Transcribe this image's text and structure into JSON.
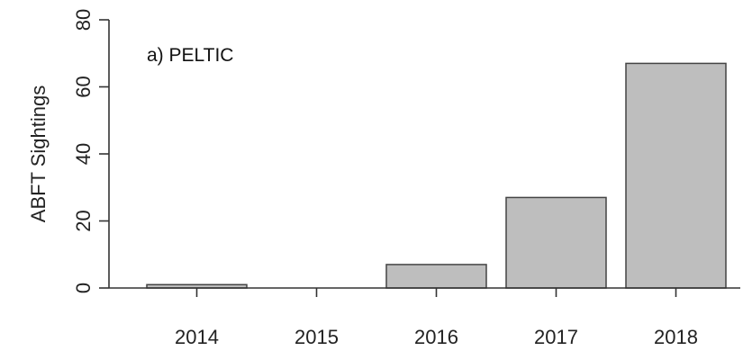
{
  "chart_data": {
    "type": "bar",
    "panel_label": "a) PELTIC",
    "ylabel": "ABFT Sightings",
    "xlabel": "",
    "categories": [
      "2014",
      "2015",
      "2016",
      "2017",
      "2018"
    ],
    "values": [
      1,
      0,
      7,
      27,
      67
    ],
    "ylim": [
      0,
      80
    ],
    "yticks": [
      0,
      20,
      40,
      60,
      80
    ],
    "bar_color": "#bebebe",
    "grid": false
  }
}
